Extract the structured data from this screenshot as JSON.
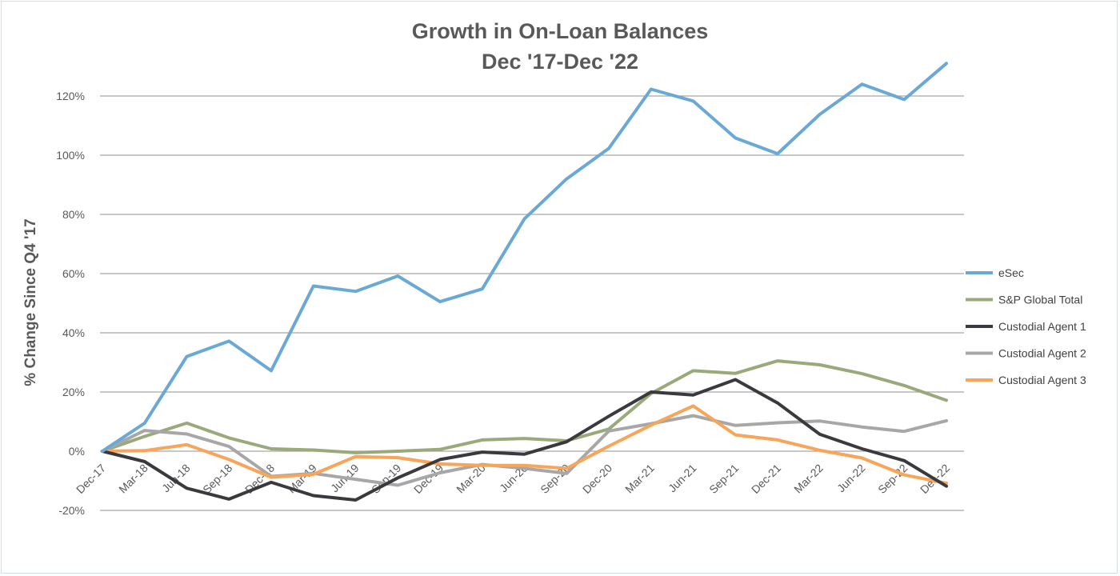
{
  "chart_data": {
    "type": "line",
    "title": "Growth in On-Loan Balances",
    "subtitle": "Dec '17-Dec '22",
    "xlabel": "",
    "ylabel": "% Change Since Q4 '17",
    "ylim": [
      -20,
      130
    ],
    "yticks": [
      -20,
      0,
      20,
      40,
      60,
      80,
      100,
      120
    ],
    "ytick_labels": [
      "-20%",
      "0%",
      "20%",
      "40%",
      "60%",
      "80%",
      "100%",
      "120%"
    ],
    "grid": true,
    "legend_position": "right",
    "categories": [
      "Dec-17",
      "Mar-18",
      "Jun-18",
      "Sep-18",
      "Dec-18",
      "Mar-19",
      "Jun-19",
      "Sep-19",
      "Dec-19",
      "Mar-20",
      "Jun-20",
      "Sep-20",
      "Dec-20",
      "Mar-21",
      "Jun-21",
      "Sep-21",
      "Dec-21",
      "Mar-22",
      "Jun-22",
      "Sep-22",
      "Dec-22"
    ],
    "series": [
      {
        "name": "eSec",
        "color": "#6aa8d6",
        "values": [
          0,
          9.5,
          32,
          37.2,
          27.2,
          55.8,
          54,
          59.2,
          50.5,
          54.8,
          78.5,
          92,
          102.3,
          122.3,
          118.3,
          105.8,
          100.5,
          113.8,
          124,
          118.8,
          131
        ]
      },
      {
        "name": "S&P Global Total",
        "color": "#9aa97a",
        "values": [
          0,
          5,
          9.5,
          4.5,
          0.8,
          0.4,
          -0.5,
          0,
          0.6,
          3.8,
          4.3,
          3.5,
          7.5,
          19.5,
          27.2,
          26.3,
          30.5,
          29.2,
          26.2,
          22.2,
          17.2
        ]
      },
      {
        "name": "Custodial Agent 1",
        "color": "#3a3a3e",
        "values": [
          0,
          -3.5,
          -12.5,
          -16.2,
          -10.5,
          -15,
          -16.5,
          -9,
          -2.8,
          -0.3,
          -1,
          3.2,
          11.8,
          20,
          19,
          24.2,
          16.3,
          5.7,
          0.8,
          -3.2,
          -11.8
        ]
      },
      {
        "name": "Custodial Agent 2",
        "color": "#a7a7a7",
        "values": [
          0,
          7,
          5.8,
          1.6,
          -8.5,
          -7.5,
          -9.5,
          -11.5,
          -7.3,
          -4.5,
          -5.8,
          -7.5,
          6.8,
          9.3,
          12,
          8.7,
          9.6,
          10.2,
          8.2,
          6.7,
          10.3
        ]
      },
      {
        "name": "Custodial Agent 3",
        "color": "#f8a55a",
        "values": [
          0,
          0.2,
          2.2,
          -2.8,
          -8.8,
          -7.8,
          -1.8,
          -2.2,
          -4.3,
          -4.8,
          -4.8,
          -5.8,
          1.7,
          8.8,
          15.3,
          5.5,
          3.8,
          0.3,
          -2.3,
          -8,
          -10.8
        ]
      }
    ]
  }
}
